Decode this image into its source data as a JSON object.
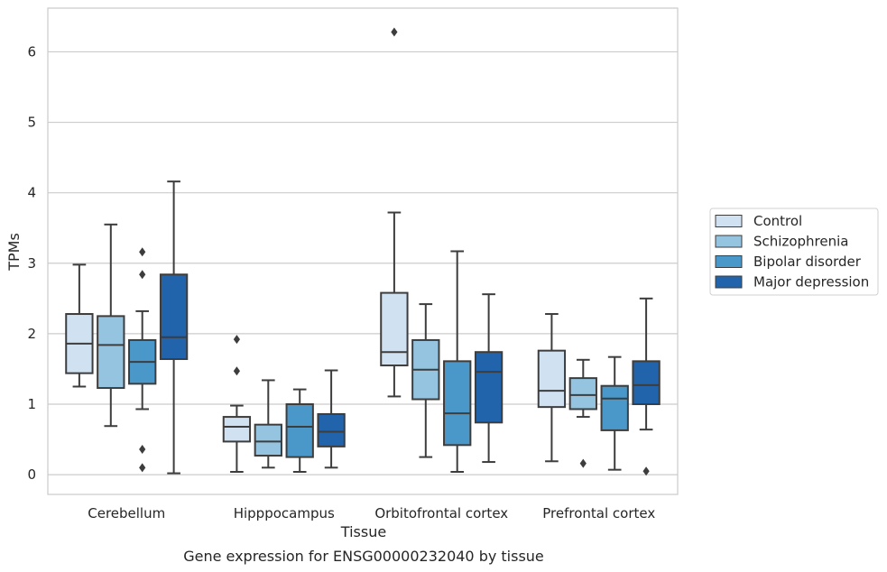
{
  "chart_data": {
    "type": "box",
    "caption": "Gene expression for ENSG00000232040 by tissue",
    "xlabel": "Tissue",
    "ylabel": "TPMs",
    "ylim": [
      -0.28,
      6.62
    ],
    "yticks": [
      0,
      1,
      2,
      3,
      4,
      5,
      6
    ],
    "grid": "horizontal",
    "legend_position": "right",
    "categories": [
      "Cerebellum",
      "Hipppocampus",
      "Orbitofrontal cortex",
      "Prefrontal cortex"
    ],
    "series": [
      {
        "name": "Control",
        "color": "#d0e1f2",
        "boxes": [
          {
            "whislo": 1.25,
            "q1": 1.44,
            "med": 1.86,
            "q3": 2.28,
            "whishi": 2.98,
            "fliers": []
          },
          {
            "whislo": 0.04,
            "q1": 0.47,
            "med": 0.68,
            "q3": 0.82,
            "whishi": 0.98,
            "fliers": [
              1.47,
              1.92
            ]
          },
          {
            "whislo": 1.11,
            "q1": 1.55,
            "med": 1.74,
            "q3": 2.58,
            "whishi": 3.72,
            "fliers": [
              6.28
            ]
          },
          {
            "whislo": 0.19,
            "q1": 0.96,
            "med": 1.19,
            "q3": 1.76,
            "whishi": 2.28,
            "fliers": []
          }
        ]
      },
      {
        "name": "Schizophrenia",
        "color": "#94c4df",
        "boxes": [
          {
            "whislo": 0.69,
            "q1": 1.23,
            "med": 1.84,
            "q3": 2.25,
            "whishi": 3.55,
            "fliers": []
          },
          {
            "whislo": 0.1,
            "q1": 0.27,
            "med": 0.47,
            "q3": 0.71,
            "whishi": 1.34,
            "fliers": []
          },
          {
            "whislo": 0.25,
            "q1": 1.07,
            "med": 1.49,
            "q3": 1.91,
            "whishi": 2.42,
            "fliers": []
          },
          {
            "whislo": 0.82,
            "q1": 0.93,
            "med": 1.13,
            "q3": 1.37,
            "whishi": 1.63,
            "fliers": [
              0.16
            ]
          }
        ]
      },
      {
        "name": "Bipolar disorder",
        "color": "#4a98c9",
        "boxes": [
          {
            "whislo": 0.93,
            "q1": 1.29,
            "med": 1.6,
            "q3": 1.91,
            "whishi": 2.32,
            "fliers": [
              0.1,
              0.36,
              2.84,
              3.16
            ]
          },
          {
            "whislo": 0.04,
            "q1": 0.25,
            "med": 0.68,
            "q3": 1.0,
            "whishi": 1.21,
            "fliers": []
          },
          {
            "whislo": 0.04,
            "q1": 0.42,
            "med": 0.87,
            "q3": 1.61,
            "whishi": 3.17,
            "fliers": []
          },
          {
            "whislo": 0.07,
            "q1": 0.63,
            "med": 1.08,
            "q3": 1.26,
            "whishi": 1.67,
            "fliers": []
          }
        ]
      },
      {
        "name": "Major depression",
        "color": "#2164ab",
        "boxes": [
          {
            "whislo": 0.02,
            "q1": 1.64,
            "med": 1.95,
            "q3": 2.84,
            "whishi": 4.16,
            "fliers": []
          },
          {
            "whislo": 0.1,
            "q1": 0.4,
            "med": 0.61,
            "q3": 0.86,
            "whishi": 1.48,
            "fliers": []
          },
          {
            "whislo": 0.18,
            "q1": 0.74,
            "med": 1.46,
            "q3": 1.74,
            "whishi": 2.56,
            "fliers": []
          },
          {
            "whislo": 0.64,
            "q1": 1.0,
            "med": 1.27,
            "q3": 1.61,
            "whishi": 2.5,
            "fliers": [
              0.05
            ]
          }
        ]
      }
    ]
  }
}
